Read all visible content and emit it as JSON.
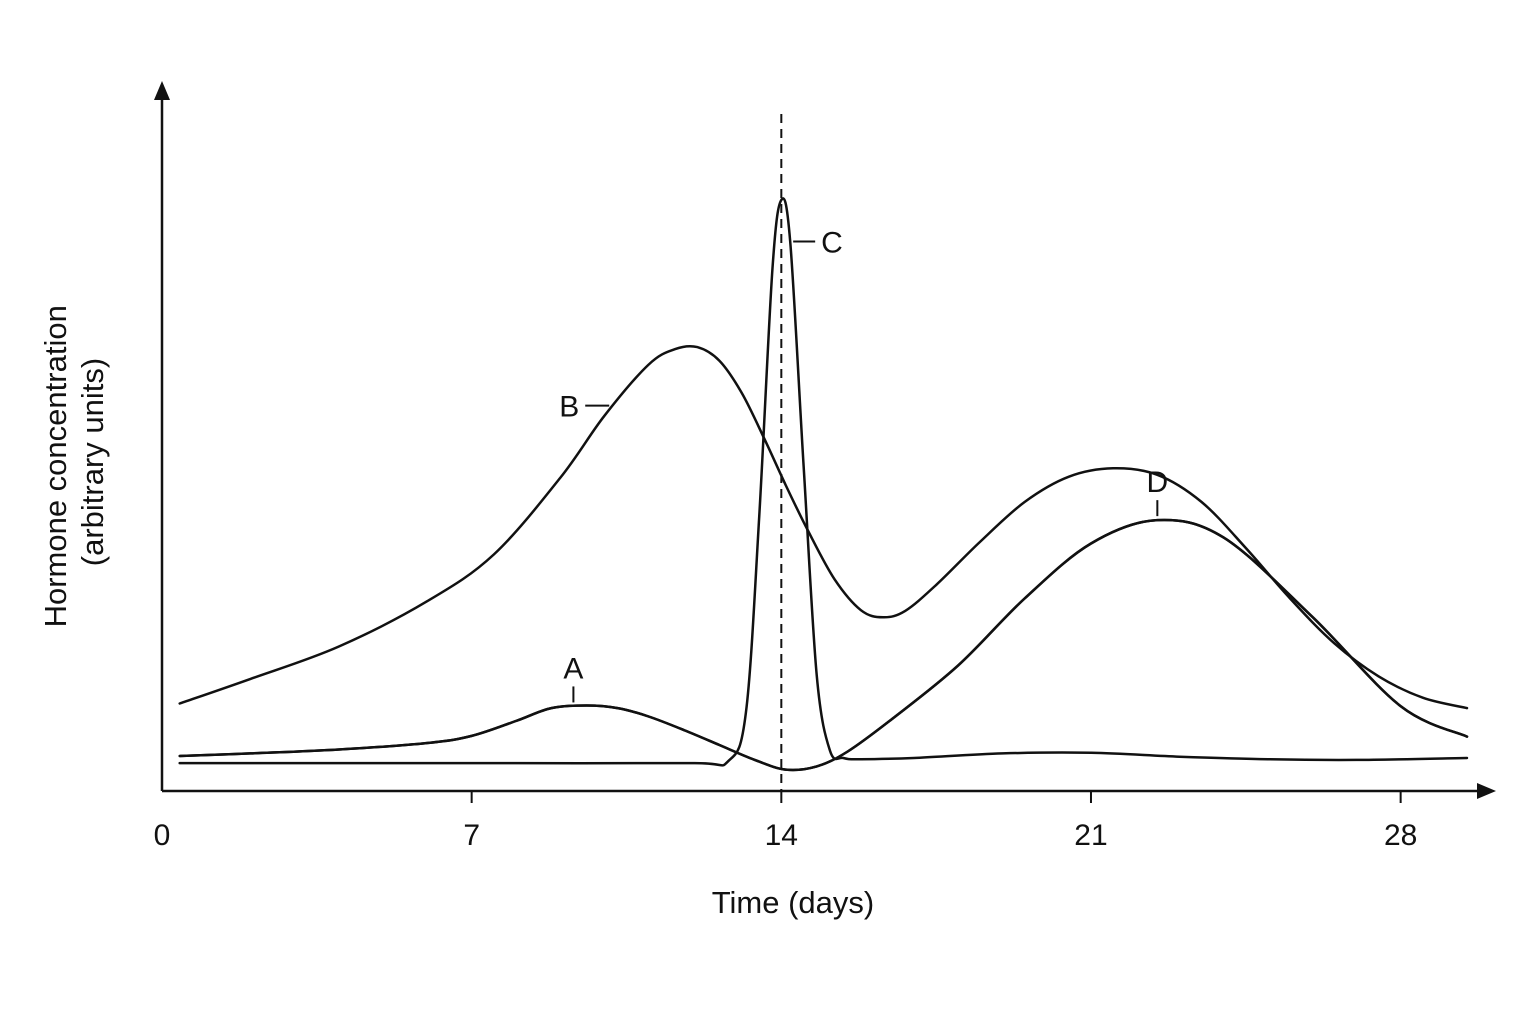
{
  "chart_data": {
    "type": "line",
    "xlabel": "Time (days)",
    "ylabel_lines": [
      "Hormone concentration",
      "(arbitrary units)"
    ],
    "xlim": [
      0,
      29.5
    ],
    "ylim": [
      0,
      100
    ],
    "x_ticks": [
      0,
      7,
      14,
      21,
      28
    ],
    "y_ticks_labeled": false,
    "grid": false,
    "vertical_marker": {
      "x": 14,
      "style": "dashed"
    },
    "series": [
      {
        "name": "A",
        "label_at_x": 9.3,
        "x": [
          0,
          2,
          4,
          6,
          7,
          8,
          8.8,
          9.6,
          10.3,
          11,
          11.8,
          12.6,
          13.4,
          14.1,
          14.8,
          15.5,
          16.5,
          18,
          19.5,
          21,
          22.5,
          24,
          26,
          28,
          29.5
        ],
        "y": [
          5.4,
          5.8,
          6.4,
          7.4,
          8.5,
          10.8,
          12.8,
          13.2,
          12.8,
          11.5,
          9.4,
          7.1,
          4.8,
          3.3,
          3.8,
          6.1,
          11.1,
          19.4,
          29.7,
          38.2,
          41.8,
          39.1,
          26.9,
          13.1,
          8.4
        ]
      },
      {
        "name": "B",
        "label_at_x": 10.2,
        "x": [
          0,
          2,
          4,
          6,
          7.5,
          9,
          10,
          11,
          11.6,
          12.1,
          12.6,
          13.1,
          13.6,
          14.1,
          14.6,
          15.2,
          15.8,
          16.3,
          16.8,
          17.5,
          18.5,
          19.5,
          20.5,
          21.5,
          22.5,
          23.5,
          24.5,
          25.5,
          26.5,
          27.5,
          28.5,
          29.5
        ],
        "y": [
          13.5,
          17.3,
          22.3,
          29.3,
          36.5,
          48.3,
          57.9,
          65.8,
          68.2,
          68.5,
          66.4,
          61.5,
          54.6,
          47.2,
          40.2,
          32.7,
          27.9,
          26.8,
          27.8,
          31.8,
          38.5,
          44.6,
          48.5,
          49.8,
          48.8,
          44.6,
          37.5,
          29.7,
          22.8,
          17.7,
          14.4,
          12.8
        ]
      },
      {
        "name": "C",
        "label_at_x": 14.2,
        "x": [
          0,
          4,
          8,
          12,
          12.8,
          13.2,
          13.5,
          13.8,
          14,
          14.2,
          14.5,
          14.8,
          15.1,
          15.4,
          15.8,
          17,
          19,
          21,
          23,
          25,
          27,
          29.5
        ],
        "y": [
          4.3,
          4.3,
          4.3,
          4.3,
          4.6,
          12.1,
          42.3,
          80.7,
          91.2,
          84.8,
          50.7,
          17.9,
          6.2,
          5.1,
          4.9,
          5.1,
          5.8,
          5.9,
          5.3,
          4.9,
          4.8,
          5.1
        ]
      },
      {
        "name": "D",
        "label_at_x": 22.5,
        "x": [
          0,
          2,
          4,
          6,
          7,
          8,
          8.8,
          9.6,
          10.3,
          11,
          11.8,
          12.6,
          13.4,
          14.1,
          14.8,
          15.5,
          16.5,
          18,
          19.5,
          21,
          22.5,
          24,
          26,
          28,
          29.5
        ],
        "y": [
          5.4,
          5.8,
          6.4,
          7.4,
          8.5,
          10.8,
          12.8,
          13.2,
          12.8,
          11.5,
          9.4,
          7.1,
          4.8,
          3.3,
          3.8,
          6.1,
          11.1,
          19.4,
          29.7,
          38.2,
          41.8,
          39.1,
          26.9,
          13.1,
          8.4
        ]
      }
    ]
  }
}
